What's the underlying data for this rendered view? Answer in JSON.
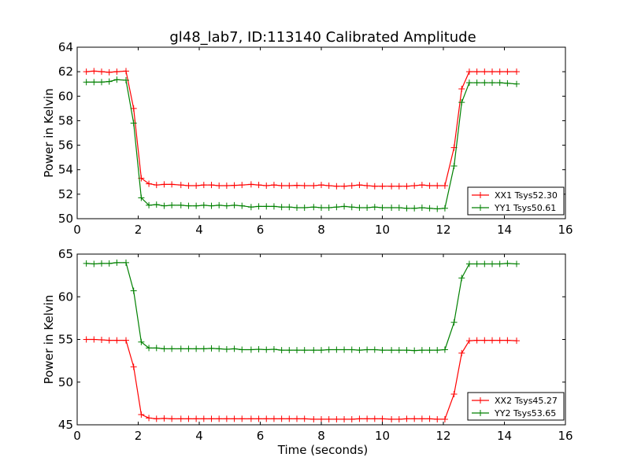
{
  "figure": {
    "title": "gl48_lab7, ID:113140 Calibrated Amplitude",
    "xlabel": "Time (seconds)"
  },
  "chart_data": [
    {
      "type": "line",
      "title": "gl48_lab7, ID:113140 Calibrated Amplitude",
      "xlabel": "",
      "ylabel": "Power in Kelvin",
      "xlim": [
        0,
        16
      ],
      "ylim": [
        50,
        64
      ],
      "xticks": [
        0,
        2,
        4,
        6,
        8,
        10,
        12,
        14,
        16
      ],
      "yticks": [
        50,
        52,
        54,
        56,
        58,
        60,
        62,
        64
      ],
      "grid": false,
      "legend_position": "lower-right",
      "x": [
        0.3,
        0.55,
        0.8,
        1.05,
        1.3,
        1.6,
        1.85,
        2.1,
        2.35,
        2.6,
        2.85,
        3.1,
        3.4,
        3.65,
        3.9,
        4.15,
        4.4,
        4.65,
        4.9,
        5.15,
        5.4,
        5.7,
        5.95,
        6.2,
        6.45,
        6.7,
        6.95,
        7.2,
        7.45,
        7.75,
        8.0,
        8.25,
        8.5,
        8.75,
        9.0,
        9.25,
        9.5,
        9.75,
        10.0,
        10.3,
        10.55,
        10.8,
        11.05,
        11.3,
        11.55,
        11.8,
        12.05,
        12.35,
        12.6,
        12.85,
        13.1,
        13.35,
        13.6,
        13.85,
        14.1,
        14.4
      ],
      "series": [
        {
          "name": "XX1 Tsys52.30",
          "color": "#ff0000",
          "values": [
            62.0,
            62.05,
            62.0,
            61.95,
            62.0,
            62.05,
            59.0,
            53.3,
            52.85,
            52.75,
            52.8,
            52.8,
            52.75,
            52.7,
            52.7,
            52.75,
            52.75,
            52.7,
            52.7,
            52.72,
            52.75,
            52.8,
            52.75,
            52.7,
            52.75,
            52.7,
            52.7,
            52.72,
            52.7,
            52.7,
            52.75,
            52.7,
            52.65,
            52.65,
            52.7,
            52.75,
            52.7,
            52.65,
            52.65,
            52.65,
            52.65,
            52.65,
            52.7,
            52.75,
            52.7,
            52.7,
            52.7,
            55.8,
            60.6,
            62.0,
            62.0,
            62.0,
            62.0,
            62.0,
            62.0,
            62.0
          ]
        },
        {
          "name": "YY1 Tsys50.61",
          "color": "#008000",
          "values": [
            61.15,
            61.15,
            61.15,
            61.2,
            61.35,
            61.3,
            57.8,
            51.7,
            51.1,
            51.15,
            51.05,
            51.1,
            51.1,
            51.05,
            51.05,
            51.1,
            51.05,
            51.1,
            51.05,
            51.1,
            51.05,
            50.95,
            51.0,
            51.0,
            51.0,
            50.95,
            50.95,
            50.9,
            50.9,
            50.95,
            50.9,
            50.9,
            50.95,
            51.0,
            50.95,
            50.9,
            50.9,
            50.95,
            50.9,
            50.9,
            50.9,
            50.85,
            50.85,
            50.9,
            50.85,
            50.8,
            50.85,
            54.3,
            59.5,
            61.1,
            61.1,
            61.1,
            61.1,
            61.1,
            61.05,
            61.0
          ]
        }
      ]
    },
    {
      "type": "line",
      "title": "",
      "xlabel": "Time (seconds)",
      "ylabel": "Power in Kelvin",
      "xlim": [
        0,
        16
      ],
      "ylim": [
        45,
        65
      ],
      "xticks": [
        0,
        2,
        4,
        6,
        8,
        10,
        12,
        14,
        16
      ],
      "yticks": [
        45,
        50,
        55,
        60,
        65
      ],
      "grid": false,
      "legend_position": "lower-right",
      "x": [
        0.3,
        0.55,
        0.8,
        1.05,
        1.3,
        1.6,
        1.85,
        2.1,
        2.35,
        2.6,
        2.85,
        3.1,
        3.4,
        3.65,
        3.9,
        4.15,
        4.4,
        4.65,
        4.9,
        5.15,
        5.4,
        5.7,
        5.95,
        6.2,
        6.45,
        6.7,
        6.95,
        7.2,
        7.45,
        7.75,
        8.0,
        8.25,
        8.5,
        8.75,
        9.0,
        9.25,
        9.5,
        9.75,
        10.0,
        10.3,
        10.55,
        10.8,
        11.05,
        11.3,
        11.55,
        11.8,
        12.05,
        12.35,
        12.6,
        12.85,
        13.1,
        13.35,
        13.6,
        13.85,
        14.1,
        14.4
      ],
      "series": [
        {
          "name": "XX2 Tsys45.27",
          "color": "#ff0000",
          "values": [
            55.0,
            55.0,
            54.95,
            54.9,
            54.9,
            54.9,
            51.8,
            46.2,
            45.8,
            45.7,
            45.75,
            45.7,
            45.7,
            45.7,
            45.7,
            45.7,
            45.7,
            45.7,
            45.7,
            45.7,
            45.7,
            45.7,
            45.7,
            45.7,
            45.7,
            45.7,
            45.7,
            45.7,
            45.7,
            45.65,
            45.65,
            45.65,
            45.65,
            45.65,
            45.65,
            45.7,
            45.7,
            45.7,
            45.7,
            45.65,
            45.65,
            45.7,
            45.7,
            45.7,
            45.7,
            45.65,
            45.65,
            48.6,
            53.4,
            54.85,
            54.9,
            54.9,
            54.9,
            54.9,
            54.9,
            54.85
          ]
        },
        {
          "name": "YY2 Tsys53.65",
          "color": "#008000",
          "values": [
            63.9,
            63.85,
            63.9,
            63.9,
            64.0,
            64.0,
            60.7,
            54.7,
            54.0,
            54.0,
            53.9,
            53.9,
            53.9,
            53.9,
            53.9,
            53.9,
            53.95,
            53.9,
            53.85,
            53.9,
            53.8,
            53.8,
            53.85,
            53.8,
            53.85,
            53.75,
            53.75,
            53.75,
            53.75,
            53.75,
            53.75,
            53.8,
            53.8,
            53.8,
            53.8,
            53.75,
            53.8,
            53.8,
            53.75,
            53.75,
            53.75,
            53.75,
            53.7,
            53.75,
            53.75,
            53.75,
            53.8,
            57.0,
            62.2,
            63.85,
            63.85,
            63.85,
            63.85,
            63.85,
            63.9,
            63.85
          ]
        }
      ]
    }
  ]
}
